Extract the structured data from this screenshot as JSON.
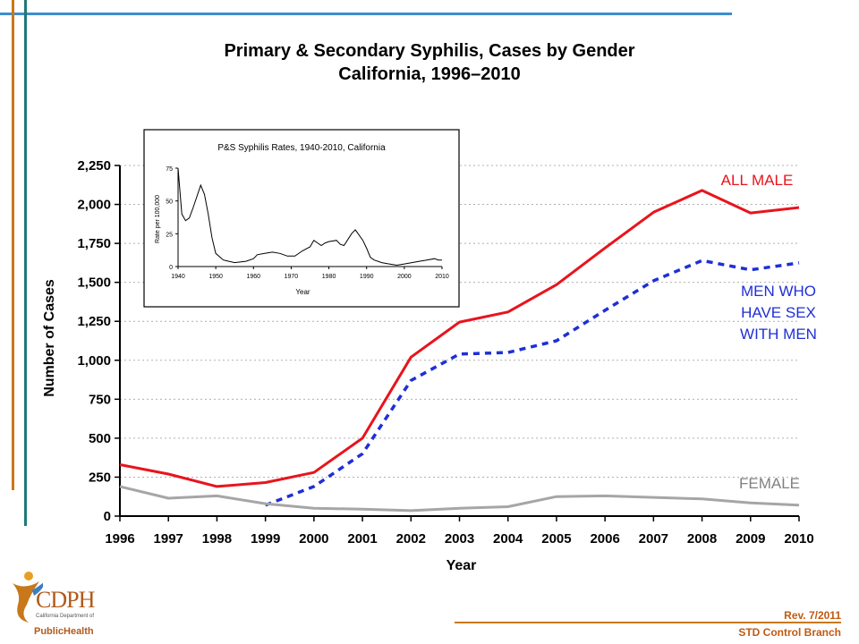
{
  "title_line1": "Primary & Secondary Syphilis, Cases by Gender",
  "title_line2": "California, 1996–2010",
  "footer": {
    "revision": "Rev. 7/2011",
    "branch": "STD Control Branch"
  },
  "logo": {
    "name": "CDPH",
    "subtitle": "California Department of",
    "public_health": "PublicHealth"
  },
  "colors": {
    "all_male": "#e8141c",
    "msm": "#1f2fd6",
    "female": "#a6a6a6"
  },
  "chart_data": [
    {
      "type": "line",
      "title": "",
      "xlabel": "Year",
      "ylabel": "Number of Cases",
      "ylim": [
        0,
        2250
      ],
      "yticks": [
        0,
        250,
        500,
        750,
        1000,
        1250,
        1500,
        1750,
        2000,
        2250
      ],
      "ytick_labels": [
        "0",
        "250",
        "500",
        "750",
        "1,000",
        "1,250",
        "1,500",
        "1,750",
        "2,000",
        "2,250"
      ],
      "x": [
        "1996",
        "1997",
        "1998",
        "1999",
        "2000",
        "2001",
        "2002",
        "2003",
        "2004",
        "2005",
        "2006",
        "2007",
        "2008",
        "2009",
        "2010"
      ],
      "grid": "horizontal dotted",
      "series": [
        {
          "name": "ALL MALE",
          "style": "solid",
          "values": [
            330,
            270,
            190,
            215,
            280,
            500,
            1020,
            1245,
            1310,
            1485,
            1720,
            1950,
            2090,
            1945,
            1980
          ]
        },
        {
          "name": "MEN WHO HAVE SEX WITH MEN",
          "style": "dashed",
          "values": [
            null,
            null,
            null,
            70,
            190,
            400,
            870,
            1040,
            1050,
            1125,
            1320,
            1510,
            1640,
            1580,
            1625
          ]
        },
        {
          "name": "FEMALE",
          "style": "solid",
          "values": [
            190,
            115,
            130,
            80,
            50,
            45,
            35,
            50,
            60,
            125,
            130,
            120,
            110,
            85,
            70
          ]
        }
      ]
    },
    {
      "type": "line",
      "title": "P&S Syphilis Rates, 1940-2010, California",
      "xlabel": "Year",
      "ylabel": "Rate per 100,000",
      "ylim": [
        0,
        75
      ],
      "yticks": [
        0,
        25,
        50,
        75
      ],
      "xlim": [
        1940,
        2010
      ],
      "xticks": [
        1940,
        1950,
        1960,
        1970,
        1980,
        1990,
        2000,
        2010
      ],
      "series": [
        {
          "name": "",
          "points": [
            [
              1940,
              75
            ],
            [
              1941,
              40
            ],
            [
              1942,
              35
            ],
            [
              1943,
              37
            ],
            [
              1944,
              45
            ],
            [
              1946,
              62
            ],
            [
              1947,
              55
            ],
            [
              1948,
              40
            ],
            [
              1949,
              22
            ],
            [
              1950,
              10
            ],
            [
              1952,
              5
            ],
            [
              1955,
              3
            ],
            [
              1958,
              4
            ],
            [
              1960,
              6
            ],
            [
              1961,
              9
            ],
            [
              1963,
              10
            ],
            [
              1965,
              11
            ],
            [
              1967,
              10
            ],
            [
              1969,
              8
            ],
            [
              1971,
              8
            ],
            [
              1973,
              12
            ],
            [
              1975,
              15
            ],
            [
              1976,
              20
            ],
            [
              1977,
              18
            ],
            [
              1978,
              16
            ],
            [
              1979,
              18
            ],
            [
              1980,
              19
            ],
            [
              1982,
              20
            ],
            [
              1983,
              17
            ],
            [
              1984,
              16
            ],
            [
              1986,
              25
            ],
            [
              1987,
              28
            ],
            [
              1989,
              20
            ],
            [
              1990,
              14
            ],
            [
              1991,
              7
            ],
            [
              1992,
              5
            ],
            [
              1994,
              3
            ],
            [
              1996,
              2
            ],
            [
              1998,
              1
            ],
            [
              2000,
              2
            ],
            [
              2002,
              3
            ],
            [
              2004,
              4
            ],
            [
              2006,
              5
            ],
            [
              2008,
              6
            ],
            [
              2009,
              5
            ],
            [
              2010,
              5
            ]
          ]
        }
      ]
    }
  ]
}
